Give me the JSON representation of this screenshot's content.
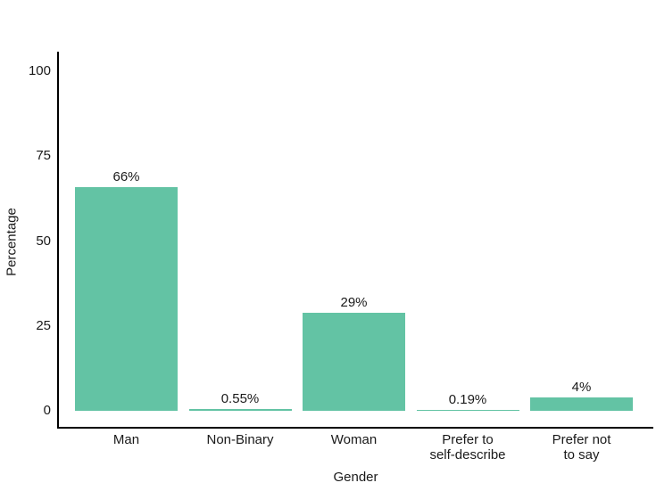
{
  "chart_data": {
    "type": "bar",
    "title": "",
    "xlabel": "Gender",
    "ylabel": "Percentage",
    "categories": [
      "Man",
      "Non-Binary",
      "Woman",
      "Prefer to\nself-describe",
      "Prefer not\nto say"
    ],
    "values": [
      66,
      0.55,
      29,
      0.19,
      4
    ],
    "value_labels": [
      "66%",
      "0.55%",
      "29%",
      "0.19%",
      "4%"
    ],
    "yticks": [
      0,
      25,
      50,
      75,
      100
    ],
    "ylim": [
      0,
      100
    ],
    "grid": false,
    "legend": null,
    "bar_color": "#63c3a4",
    "axis_color": "#000000",
    "text_color": "#1a1a1a",
    "background_color": "#ffffff"
  }
}
